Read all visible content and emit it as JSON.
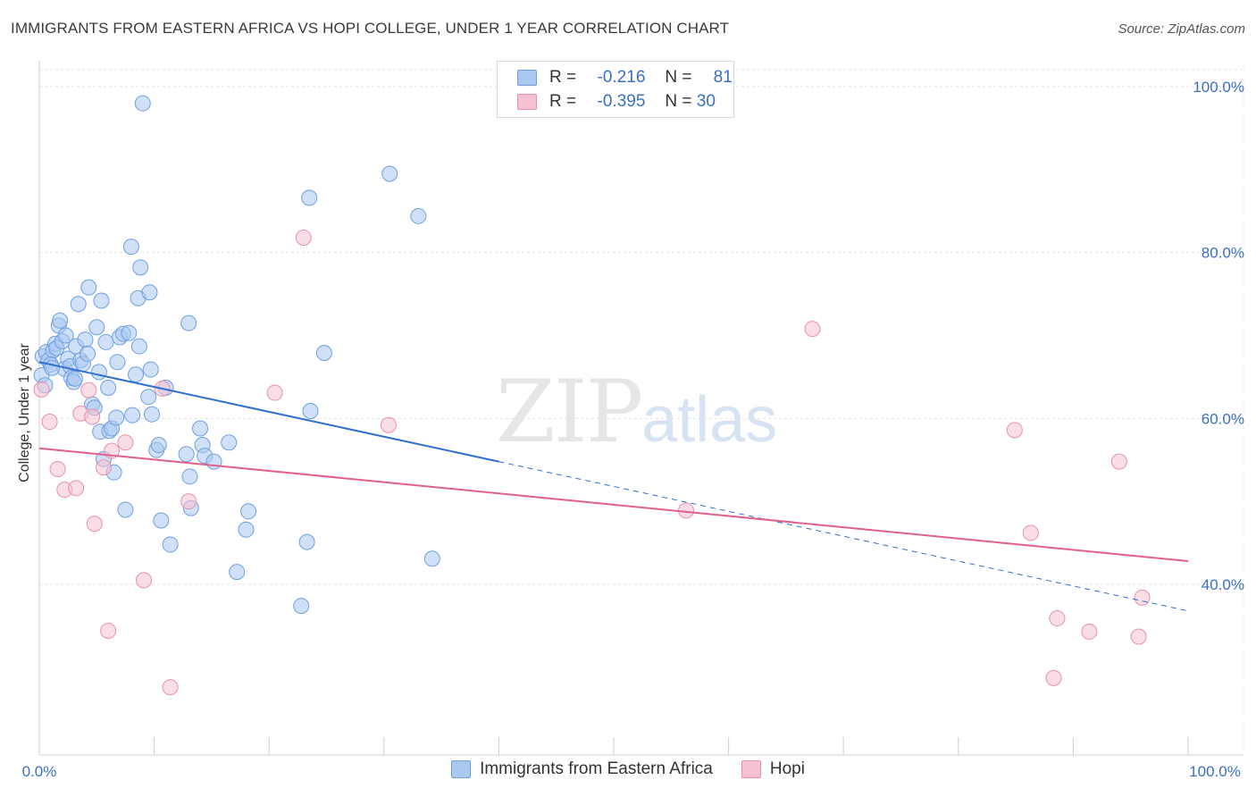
{
  "title": "IMMIGRANTS FROM EASTERN AFRICA VS HOPI COLLEGE, UNDER 1 YEAR CORRELATION CHART",
  "source": "Source: ZipAtlas.com",
  "watermark": {
    "zip": "ZIP",
    "atlas": "atlas"
  },
  "legend": {
    "r_label": "R =",
    "n_label": "N =",
    "rows": [
      {
        "r": "-0.216",
        "n": "81",
        "color": "#a9c8f0",
        "border": "#6f9fe0"
      },
      {
        "r": "-0.395",
        "n": "30",
        "color": "#f6c2d2",
        "border": "#e890ae"
      }
    ]
  },
  "bottom_legend": [
    {
      "label": "Immigrants from Eastern Africa",
      "color": "#a9c8f0",
      "border": "#6f9fe0"
    },
    {
      "label": "Hopi",
      "color": "#f6c2d2",
      "border": "#e890ae"
    }
  ],
  "chart_data": {
    "type": "scatter",
    "title": "IMMIGRANTS FROM EASTERN AFRICA VS HOPI COLLEGE, UNDER 1 YEAR CORRELATION CHART",
    "xlabel": "",
    "ylabel": "College, Under 1 year",
    "xlim": [
      0,
      100
    ],
    "ylim": [
      20,
      104
    ],
    "x_tick_labels": [
      "0.0%",
      "100.0%"
    ],
    "y_ticks": [
      40,
      60,
      80,
      100
    ],
    "y_tick_labels": [
      "40.0%",
      "60.0%",
      "80.0%",
      "100.0%"
    ],
    "grid": true,
    "series": [
      {
        "name": "Immigrants from Eastern Africa",
        "color": "#6f9fe0",
        "fill": "#a9c8f0",
        "trend": {
          "x0": 0,
          "y0": 66.8,
          "x1": 40,
          "y1": 54.8,
          "dashed_to_x": 100,
          "dashed_to_y": 36.8,
          "color": "#2f6fd0"
        },
        "points": [
          [
            0.3,
            67.5
          ],
          [
            0.6,
            68.0
          ],
          [
            0.8,
            67.0
          ],
          [
            1.2,
            68.2
          ],
          [
            1.4,
            69.0
          ],
          [
            1.5,
            68.5
          ],
          [
            1.0,
            66.5
          ],
          [
            1.7,
            71.2
          ],
          [
            1.8,
            71.8
          ],
          [
            2.0,
            69.3
          ],
          [
            2.2,
            66.0
          ],
          [
            2.5,
            67.2
          ],
          [
            2.7,
            66.3
          ],
          [
            2.8,
            64.9
          ],
          [
            3.0,
            64.4
          ],
          [
            3.2,
            68.7
          ],
          [
            3.4,
            73.8
          ],
          [
            3.6,
            67.0
          ],
          [
            3.8,
            66.6
          ],
          [
            4.0,
            69.5
          ],
          [
            4.2,
            67.8
          ],
          [
            4.3,
            75.8
          ],
          [
            4.6,
            61.7
          ],
          [
            4.8,
            61.3
          ],
          [
            5.0,
            71.0
          ],
          [
            5.2,
            65.6
          ],
          [
            5.3,
            58.4
          ],
          [
            5.4,
            74.2
          ],
          [
            5.6,
            55.1
          ],
          [
            5.8,
            69.2
          ],
          [
            6.0,
            63.7
          ],
          [
            6.1,
            58.5
          ],
          [
            6.3,
            58.8
          ],
          [
            6.5,
            53.5
          ],
          [
            6.8,
            66.8
          ],
          [
            7.0,
            69.8
          ],
          [
            7.3,
            70.2
          ],
          [
            7.5,
            49.0
          ],
          [
            7.8,
            70.3
          ],
          [
            8.0,
            80.7
          ],
          [
            8.1,
            60.4
          ],
          [
            8.4,
            65.3
          ],
          [
            8.6,
            74.5
          ],
          [
            8.7,
            68.7
          ],
          [
            8.8,
            78.2
          ],
          [
            9.0,
            98.0
          ],
          [
            9.5,
            62.6
          ],
          [
            9.6,
            75.2
          ],
          [
            9.8,
            60.5
          ],
          [
            10.2,
            56.2
          ],
          [
            10.4,
            56.8
          ],
          [
            10.6,
            47.7
          ],
          [
            11.0,
            63.7
          ],
          [
            11.4,
            44.8
          ],
          [
            12.8,
            55.7
          ],
          [
            13.0,
            71.5
          ],
          [
            13.1,
            53.0
          ],
          [
            13.2,
            49.2
          ],
          [
            14.0,
            58.8
          ],
          [
            14.2,
            56.8
          ],
          [
            14.4,
            55.5
          ],
          [
            15.2,
            54.8
          ],
          [
            16.5,
            57.1
          ],
          [
            17.2,
            41.5
          ],
          [
            18.0,
            46.6
          ],
          [
            18.2,
            48.8
          ],
          [
            22.8,
            37.4
          ],
          [
            23.3,
            45.1
          ],
          [
            23.5,
            86.6
          ],
          [
            23.6,
            60.9
          ],
          [
            24.8,
            67.9
          ],
          [
            30.5,
            89.5
          ],
          [
            33.0,
            84.4
          ],
          [
            34.2,
            43.1
          ],
          [
            0.2,
            65.2
          ],
          [
            0.5,
            64.0
          ],
          [
            1.1,
            66.1
          ],
          [
            2.3,
            70.0
          ],
          [
            3.1,
            64.8
          ],
          [
            6.7,
            60.1
          ],
          [
            9.7,
            65.9
          ]
        ]
      },
      {
        "name": "Hopi",
        "color": "#e890ae",
        "fill": "#f6c2d2",
        "trend": {
          "x0": 0,
          "y0": 56.4,
          "x1": 100,
          "y1": 42.8,
          "color": "#e0608c"
        },
        "points": [
          [
            0.2,
            63.5
          ],
          [
            0.9,
            59.6
          ],
          [
            1.6,
            53.9
          ],
          [
            2.2,
            51.4
          ],
          [
            3.2,
            51.6
          ],
          [
            3.6,
            60.6
          ],
          [
            4.3,
            63.4
          ],
          [
            4.6,
            60.2
          ],
          [
            4.8,
            47.3
          ],
          [
            5.6,
            54.1
          ],
          [
            6.0,
            34.4
          ],
          [
            6.3,
            56.1
          ],
          [
            7.5,
            57.1
          ],
          [
            9.1,
            40.5
          ],
          [
            10.7,
            63.6
          ],
          [
            11.4,
            27.6
          ],
          [
            13.0,
            50.0
          ],
          [
            20.5,
            63.1
          ],
          [
            23.0,
            81.8
          ],
          [
            30.4,
            59.2
          ],
          [
            56.3,
            48.9
          ],
          [
            67.3,
            70.8
          ],
          [
            84.9,
            58.6
          ],
          [
            86.3,
            46.2
          ],
          [
            88.3,
            28.7
          ],
          [
            88.6,
            35.9
          ],
          [
            91.4,
            34.3
          ],
          [
            94.0,
            54.8
          ],
          [
            95.7,
            33.7
          ],
          [
            96.0,
            38.4
          ]
        ]
      }
    ]
  }
}
